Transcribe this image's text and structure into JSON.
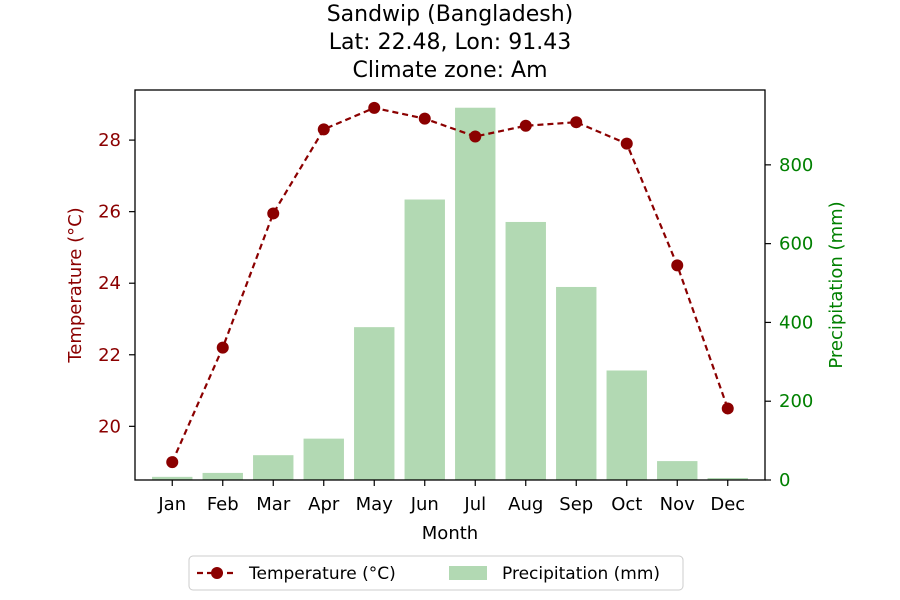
{
  "chart_data": {
    "type": "bar",
    "title_lines": [
      "Sandwip (Bangladesh)",
      "Lat: 22.48, Lon: 91.43",
      "Climate zone: Am"
    ],
    "xlabel": "Month",
    "ylabel_left": "Temperature (°C)",
    "ylabel_right": "Precipitation (mm)",
    "categories": [
      "Jan",
      "Feb",
      "Mar",
      "Apr",
      "May",
      "Jun",
      "Jul",
      "Aug",
      "Sep",
      "Oct",
      "Nov",
      "Dec"
    ],
    "temperature": {
      "name": "Temperature (°C)",
      "type": "line",
      "values": [
        19.0,
        22.2,
        25.95,
        28.3,
        28.9,
        28.6,
        28.1,
        28.4,
        28.5,
        27.9,
        24.5,
        20.5
      ],
      "color": "#8b0000",
      "ylim": [
        18.5,
        29.4
      ],
      "ticks": [
        20,
        22,
        24,
        26,
        28
      ]
    },
    "precipitation": {
      "name": "Precipitation (mm)",
      "type": "bar",
      "values": [
        8,
        18,
        63,
        105,
        388,
        712,
        945,
        655,
        490,
        278,
        48,
        5
      ],
      "color": "#b2d9b3",
      "ylim": [
        0,
        990
      ],
      "ticks": [
        0,
        200,
        400,
        600,
        800
      ]
    },
    "left_axis_color": "#8b0000",
    "right_axis_color": "#008000",
    "legend": {
      "placement": "bottom-center",
      "entries": [
        "Temperature (°C)",
        "Precipitation (mm)"
      ]
    },
    "grid": false
  }
}
